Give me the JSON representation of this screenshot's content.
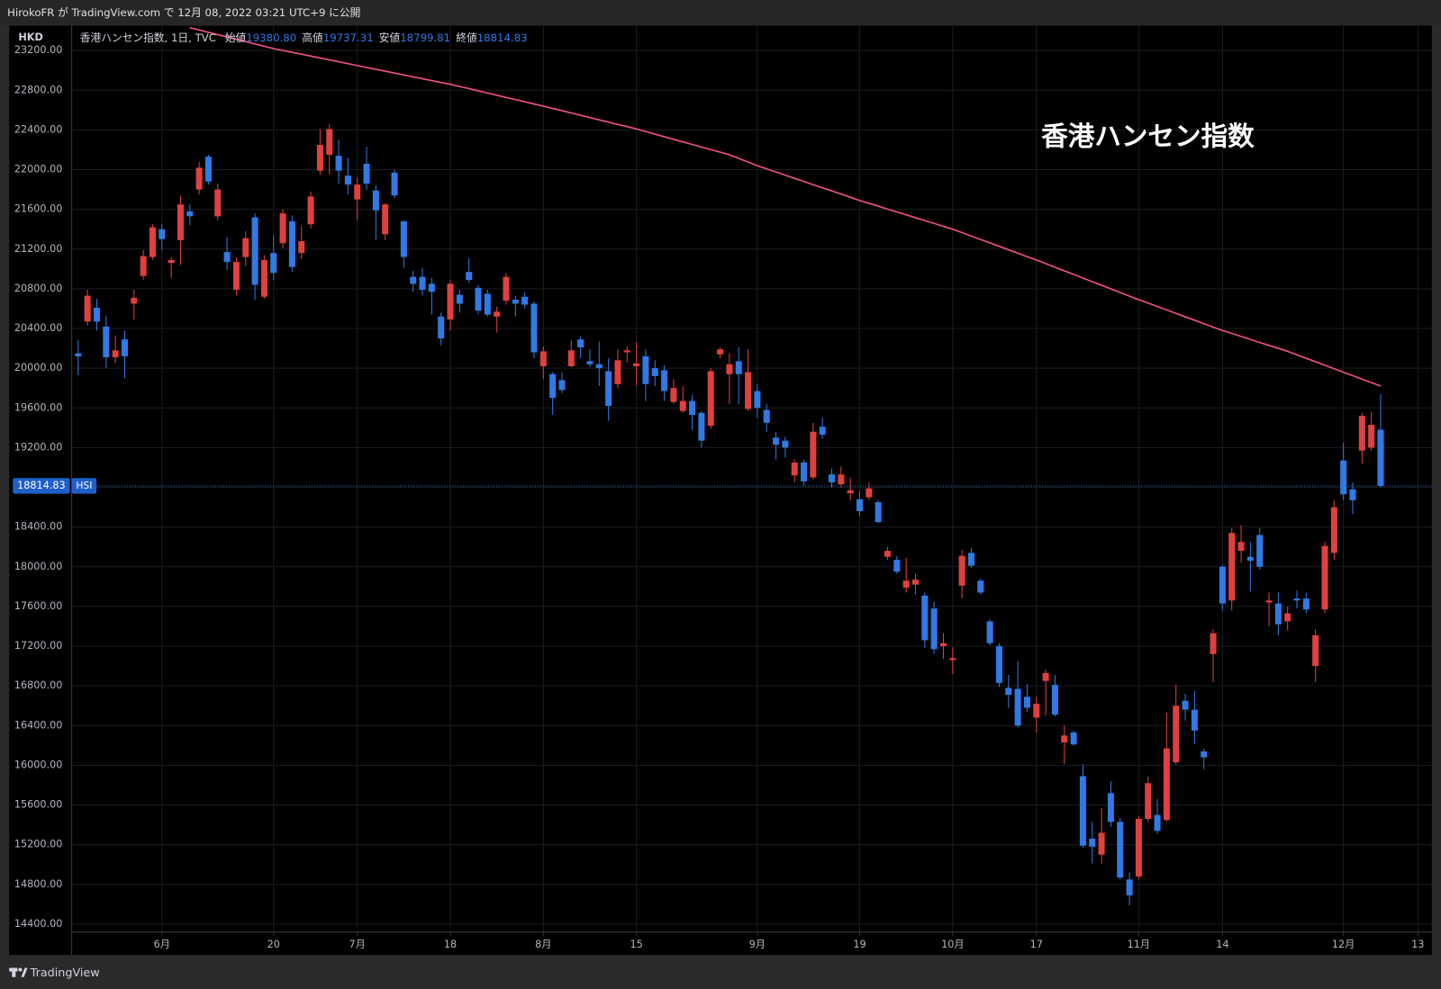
{
  "top_bar": {
    "text": "HirokoFR が TradingView.com で 12月 08, 2022 03:21 UTC+9 に公開"
  },
  "footer": {
    "brand": "TradingView"
  },
  "chart_data": {
    "type": "candlestick",
    "currency": "HKD",
    "legend": {
      "symbol": "香港ハンセン指数, 1日, TVC",
      "fields": [
        {
          "name": "始値",
          "value_label": "19380.80"
        },
        {
          "name": "高値",
          "value_label": "19737.31"
        },
        {
          "name": "安値",
          "value_label": "18799.81"
        },
        {
          "name": "終値",
          "value_label": "18814.83"
        }
      ]
    },
    "annotation": "香港ハンセン指数",
    "price_tag": {
      "value_label": "18814.83",
      "symbol": "HSI"
    },
    "up_color": "#e0403e",
    "down_color": "#2f7ae5",
    "xlim": [
      -0.7,
      145.5
    ],
    "xticks": [
      {
        "value": 9,
        "label": "6月"
      },
      {
        "value": 21,
        "label": "20"
      },
      {
        "value": 30,
        "label": "7月"
      },
      {
        "value": 40,
        "label": "18"
      },
      {
        "value": 50,
        "label": "8月"
      },
      {
        "value": 60,
        "label": "15"
      },
      {
        "value": 73,
        "label": "9月"
      },
      {
        "value": 84,
        "label": "19"
      },
      {
        "value": 94,
        "label": "10月"
      },
      {
        "value": 103,
        "label": "17"
      },
      {
        "value": 114,
        "label": "11月"
      },
      {
        "value": 123,
        "label": "14"
      },
      {
        "value": 136,
        "label": "12月"
      },
      {
        "value": 144,
        "label": "13"
      }
    ],
    "ylim": [
      14320,
      23450
    ],
    "yticks": [
      {
        "value": 14400,
        "label": "14400.00"
      },
      {
        "value": 14800,
        "label": "14800.00"
      },
      {
        "value": 15200,
        "label": "15200.00"
      },
      {
        "value": 15600,
        "label": "15600.00"
      },
      {
        "value": 16000,
        "label": "16000.00"
      },
      {
        "value": 16400,
        "label": "16400.00"
      },
      {
        "value": 16800,
        "label": "16800.00"
      },
      {
        "value": 17200,
        "label": "17200.00"
      },
      {
        "value": 17600,
        "label": "17600.00"
      },
      {
        "value": 18000,
        "label": "18000.00"
      },
      {
        "value": 18400,
        "label": "18400.00"
      },
      {
        "value": 18800,
        "label": "18800.00"
      },
      {
        "value": 19200,
        "label": "19200.00"
      },
      {
        "value": 19600,
        "label": "19600.00"
      },
      {
        "value": 20000,
        "label": "20000.00"
      },
      {
        "value": 20400,
        "label": "20400.00"
      },
      {
        "value": 20800,
        "label": "20800.00"
      },
      {
        "value": 21200,
        "label": "21200.00"
      },
      {
        "value": 21600,
        "label": "21600.00"
      },
      {
        "value": 22000,
        "label": "22000.00"
      },
      {
        "value": 22400,
        "label": "22400.00"
      },
      {
        "value": 22800,
        "label": "22800.00"
      },
      {
        "value": 23200,
        "label": "23200.00"
      }
    ],
    "grid": true,
    "open": [
      20150,
      20470,
      20610,
      20420,
      20110,
      20290,
      20650,
      20930,
      21120,
      21400,
      21060,
      21290,
      21580,
      21800,
      22130,
      21530,
      21170,
      20790,
      21120,
      21520,
      20720,
      21160,
      21260,
      21480,
      21160,
      21450,
      21990,
      22150,
      22140,
      21940,
      21700,
      22060,
      21790,
      21350,
      21970,
      21480,
      20920,
      20920,
      20850,
      20520,
      20490,
      20740,
      20970,
      20810,
      20750,
      20520,
      20680,
      20690,
      20720,
      20650,
      20020,
      19940,
      19880,
      20020,
      20290,
      20070,
      20040,
      19970,
      19840,
      20160,
      20020,
      20120,
      20000,
      19980,
      19660,
      19570,
      19670,
      19550,
      19420,
      20140,
      19940,
      20070,
      19590,
      19770,
      19580,
      19300,
      19270,
      18920,
      19050,
      18900,
      19410,
      18930,
      18830,
      18740,
      18680,
      18700,
      18650,
      18100,
      18070,
      17790,
      17820,
      17710,
      17580,
      17200,
      17060,
      17810,
      18140,
      17860,
      17450,
      17200,
      16780,
      16770,
      16690,
      16480,
      16850,
      16810,
      16230,
      16330,
      15890,
      15260,
      15100,
      15720,
      15430,
      14850,
      14880,
      15460,
      15500,
      15450,
      16030,
      16650,
      16560,
      16140,
      17120,
      18000,
      17660,
      18160,
      18100,
      18320,
      17640,
      17630,
      17450,
      17680,
      17680,
      17000,
      17570,
      18140,
      19070,
      18780,
      19170,
      19200,
      19380.8
    ],
    "high": [
      20280,
      20790,
      20700,
      20530,
      20330,
      20380,
      20790,
      21190,
      21450,
      21450,
      21120,
      21740,
      21650,
      22080,
      22150,
      21860,
      21320,
      21120,
      21380,
      21560,
      21140,
      21340,
      21600,
      21540,
      21430,
      21780,
      22410,
      22460,
      22300,
      22120,
      21920,
      22230,
      21840,
      21660,
      22000,
      21490,
      20980,
      21010,
      20910,
      20560,
      20890,
      20790,
      21110,
      20840,
      20790,
      20620,
      20960,
      20730,
      20770,
      20670,
      20220,
      19960,
      19960,
      20280,
      20320,
      20190,
      20270,
      20100,
      20190,
      20220,
      20260,
      20190,
      20080,
      20030,
      19890,
      19820,
      19730,
      19570,
      20000,
      20210,
      20150,
      20210,
      20190,
      19840,
      19640,
      19360,
      19310,
      19080,
      19080,
      19450,
      19500,
      18990,
      19010,
      18900,
      18760,
      18850,
      18670,
      18200,
      18110,
      18090,
      17930,
      17740,
      17650,
      17330,
      17190,
      18170,
      18190,
      17880,
      17470,
      17230,
      16910,
      17050,
      16820,
      16690,
      16960,
      16910,
      16400,
      16350,
      16010,
      15430,
      15570,
      15840,
      15470,
      14920,
      15490,
      15890,
      15660,
      16530,
      16810,
      16720,
      16750,
      16170,
      17370,
      18020,
      18390,
      18420,
      18250,
      18390,
      17740,
      17740,
      17600,
      17760,
      17740,
      17370,
      18250,
      18670,
      19250,
      18850,
      19550,
      19560,
      19737.31
    ],
    "low": [
      19930,
      20430,
      20380,
      20000,
      20050,
      19900,
      20490,
      20890,
      21090,
      21190,
      20910,
      21040,
      21440,
      21750,
      21850,
      21490,
      20990,
      20730,
      21030,
      20690,
      20700,
      20890,
      21210,
      20970,
      21100,
      21410,
      21950,
      21950,
      21860,
      21750,
      21490,
      21800,
      21290,
      21290,
      21710,
      21010,
      20770,
      20730,
      20540,
      20230,
      20380,
      20560,
      20860,
      20540,
      20520,
      20360,
      20640,
      20520,
      20600,
      20100,
      19890,
      19530,
      19750,
      20010,
      20100,
      20010,
      19820,
      19470,
      19800,
      20060,
      19820,
      19670,
      19820,
      19670,
      19640,
      19550,
      19380,
      19200,
      19390,
      20100,
      19640,
      19640,
      19570,
      19500,
      19360,
      19080,
      19100,
      18850,
      18820,
      18880,
      19290,
      18800,
      18800,
      18670,
      18510,
      18670,
      18440,
      18070,
      17930,
      17740,
      17720,
      17180,
      17120,
      17070,
      16920,
      17680,
      17990,
      17720,
      17210,
      16790,
      16580,
      16380,
      16540,
      16330,
      16500,
      16490,
      16010,
      16200,
      15170,
      15010,
      15010,
      15380,
      14850,
      14590,
      14850,
      15430,
      15310,
      15430,
      16010,
      16450,
      16210,
      15960,
      16840,
      17560,
      17560,
      18040,
      17750,
      17970,
      17400,
      17310,
      17360,
      17580,
      17530,
      16840,
      17530,
      18070,
      18670,
      18530,
      19040,
      19170,
      18799.81
    ],
    "close": [
      20120,
      20730,
      20470,
      20110,
      20180,
      20120,
      20710,
      21130,
      21420,
      21300,
      21090,
      21650,
      21530,
      22020,
      21880,
      21800,
      21070,
      21070,
      21310,
      20840,
      21090,
      20960,
      21560,
      21020,
      21280,
      21730,
      22250,
      22410,
      21990,
      21850,
      21850,
      21860,
      21590,
      21650,
      21740,
      21120,
      20850,
      20790,
      20770,
      20300,
      20850,
      20650,
      20890,
      20580,
      20540,
      20570,
      20920,
      20650,
      20640,
      20160,
      20170,
      19700,
      19780,
      20180,
      20210,
      20040,
      20000,
      19620,
      20080,
      20180,
      20050,
      19840,
      19920,
      19770,
      19800,
      19670,
      19530,
      19270,
      19970,
      20190,
      20040,
      19940,
      19960,
      19600,
      19450,
      19230,
      19200,
      19050,
      18860,
      19360,
      19330,
      18850,
      18930,
      18770,
      18560,
      18790,
      18450,
      18160,
      17950,
      17860,
      17870,
      17260,
      17170,
      17230,
      17080,
      18110,
      18010,
      17740,
      17230,
      16830,
      16710,
      16400,
      16580,
      16620,
      16930,
      16510,
      16300,
      16210,
      15190,
      15180,
      15320,
      15430,
      14870,
      14690,
      15460,
      15820,
      15340,
      16170,
      16600,
      16560,
      16350,
      16080,
      17330,
      17630,
      18340,
      18250,
      18060,
      18000,
      17660,
      17420,
      17530,
      17660,
      17570,
      17310,
      18210,
      18600,
      18730,
      18670,
      19520,
      19430,
      18814.83
    ],
    "series": [
      {
        "color": "#f0508a",
        "values": [
          null,
          null,
          null,
          null,
          null,
          null,
          null,
          null,
          null,
          null,
          null,
          null,
          23430,
          23407,
          23383,
          23360,
          23337,
          23313,
          23290,
          23267,
          23243,
          23220,
          23201,
          23182,
          23163,
          23144,
          23125,
          23106,
          23087,
          23068,
          23049,
          23030,
          23011,
          22992,
          22973,
          22954,
          22935,
          22916,
          22897,
          22878,
          22860,
          22838,
          22816,
          22794,
          22772,
          22750,
          22728,
          22706,
          22684,
          22662,
          22640,
          22617,
          22594,
          22571,
          22548,
          22525,
          22502,
          22479,
          22456,
          22433,
          22410,
          22384,
          22358,
          22332,
          22306,
          22280,
          22254,
          22228,
          22202,
          22176,
          22150,
          22113,
          22077,
          22040,
          22008,
          21976,
          21945,
          21913,
          21881,
          21849,
          21817,
          21786,
          21754,
          21722,
          21690,
          21661,
          21632,
          21603,
          21574,
          21545,
          21516,
          21487,
          21458,
          21429,
          21400,
          21366,
          21331,
          21297,
          21262,
          21228,
          21193,
          21159,
          21124,
          21090,
          21054,
          21017,
          20981,
          20945,
          20908,
          20872,
          20836,
          20799,
          20763,
          20726,
          20690,
          20656,
          20621,
          20587,
          20552,
          20518,
          20483,
          20449,
          20414,
          20380,
          20350,
          20320,
          20290,
          20260,
          20230,
          20200,
          20170,
          20135,
          20100,
          20065,
          20030,
          19995,
          19960,
          19925,
          19890,
          19855,
          19820
        ]
      }
    ]
  }
}
